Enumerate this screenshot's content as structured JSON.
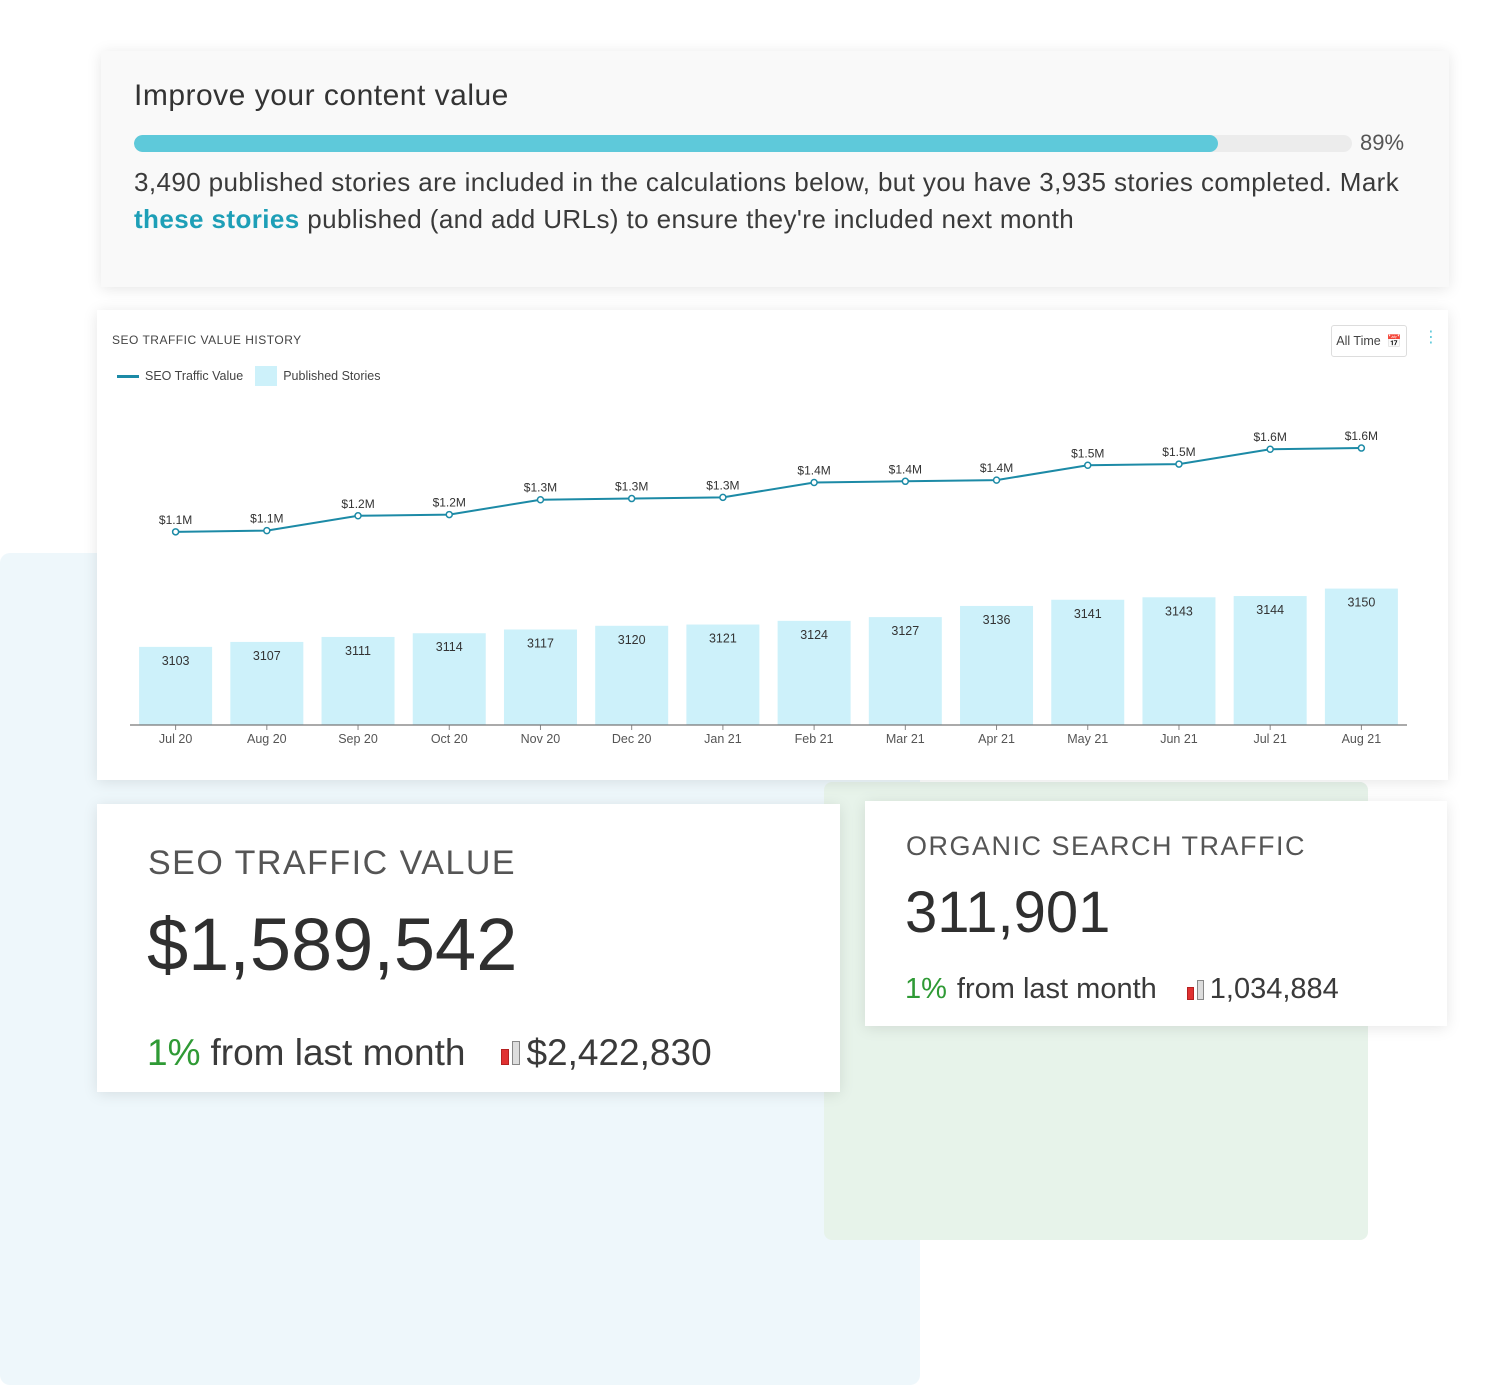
{
  "improve": {
    "title": "Improve your content value",
    "progress_percent": 89,
    "progress_label": "89%",
    "text_before": "3,490 published stories are included in the calculations below, but you have 3,935 stories completed. Mark ",
    "link_text": "these stories",
    "text_after": " published (and add URLs) to ensure they're included next month"
  },
  "chart_header": {
    "title": "SEO TRAFFIC VALUE HISTORY",
    "time_filter": "All Time",
    "time_icon": "calendar-icon",
    "menu_icon": "kebab-menu-icon"
  },
  "chart_data": {
    "type": "bar",
    "title": "SEO TRAFFIC VALUE HISTORY",
    "categories": [
      "Jul 20",
      "Aug 20",
      "Sep 20",
      "Oct 20",
      "Nov 20",
      "Dec 20",
      "Jan 21",
      "Feb 21",
      "Mar 21",
      "Apr 21",
      "May 21",
      "Jun 21",
      "Jul 21",
      "Aug 21"
    ],
    "series": [
      {
        "name": "Published Stories",
        "type": "bar",
        "color": "#cdf1fa",
        "values": [
          3103,
          3107,
          3111,
          3114,
          3117,
          3120,
          3121,
          3124,
          3127,
          3136,
          3141,
          3143,
          3144,
          3150
        ]
      },
      {
        "name": "SEO Traffic Value",
        "type": "line",
        "color": "#1c8aa6",
        "values": [
          1.1,
          1.1,
          1.2,
          1.2,
          1.3,
          1.3,
          1.3,
          1.4,
          1.4,
          1.4,
          1.5,
          1.5,
          1.6,
          1.6
        ],
        "labels": [
          "$1.1M",
          "$1.1M",
          "$1.2M",
          "$1.2M",
          "$1.3M",
          "$1.3M",
          "$1.3M",
          "$1.4M",
          "$1.4M",
          "$1.4M",
          "$1.5M",
          "$1.5M",
          "$1.6M",
          "$1.6M"
        ]
      }
    ],
    "legend": "top-left",
    "grid": false
  },
  "metric_seo": {
    "label": "SEO TRAFFIC VALUE",
    "value": "$1,589,542",
    "change_pct": "1%",
    "change_text": "from last month",
    "compare_value": "$2,422,830"
  },
  "metric_organic": {
    "label": "ORGANIC SEARCH TRAFFIC",
    "value": "311,901",
    "change_pct": "1%",
    "change_text": "from last month",
    "compare_value": "1,034,884"
  },
  "colors": {
    "accent": "#5ec9da",
    "link": "#1e9fb7",
    "line": "#1c8aa6",
    "bar": "#cdf1fa",
    "positive": "#2f9a35",
    "negative": "#e03131"
  }
}
